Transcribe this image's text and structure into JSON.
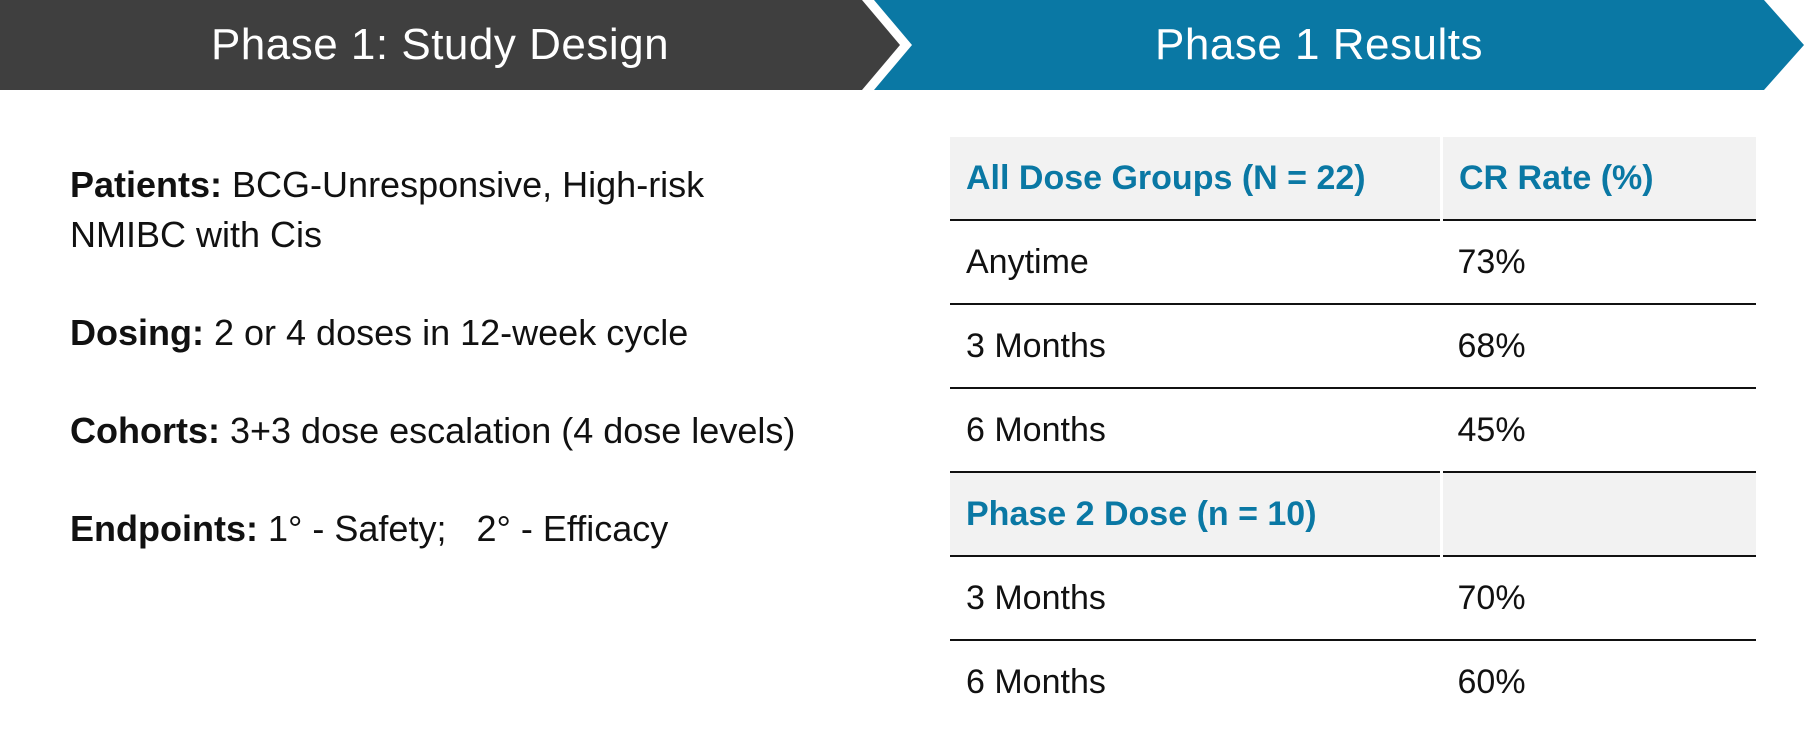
{
  "banners": {
    "left": "Phase 1: Study Design",
    "right": "Phase 1 Results",
    "colors": {
      "left": "#3f3f3f",
      "right": "#0a78a4"
    }
  },
  "design": [
    {
      "label": "Patients:",
      "text": " BCG-Unresponsive, High-risk NMIBC with Cis"
    },
    {
      "label": "Dosing:",
      "text": " 2 or 4 doses in 12-week cycle"
    },
    {
      "label": "Cohorts:",
      "text": " 3+3 dose escalation (4 dose levels)"
    },
    {
      "label": "Endpoints:",
      "text": " 1° - Safety;   2° - Efficacy"
    }
  ],
  "results": {
    "header1": {
      "group": "All Dose Groups (N = 22)",
      "metric": "CR Rate (%)"
    },
    "rows1": [
      {
        "label": "Anytime",
        "value": "73%"
      },
      {
        "label": "3 Months",
        "value": "68%"
      },
      {
        "label": "6 Months",
        "value": "45%"
      }
    ],
    "header2": {
      "group": "Phase 2 Dose (n = 10)",
      "metric": ""
    },
    "rows2": [
      {
        "label": "3 Months",
        "value": "70%"
      },
      {
        "label": "6 Months",
        "value": "60%"
      }
    ]
  }
}
